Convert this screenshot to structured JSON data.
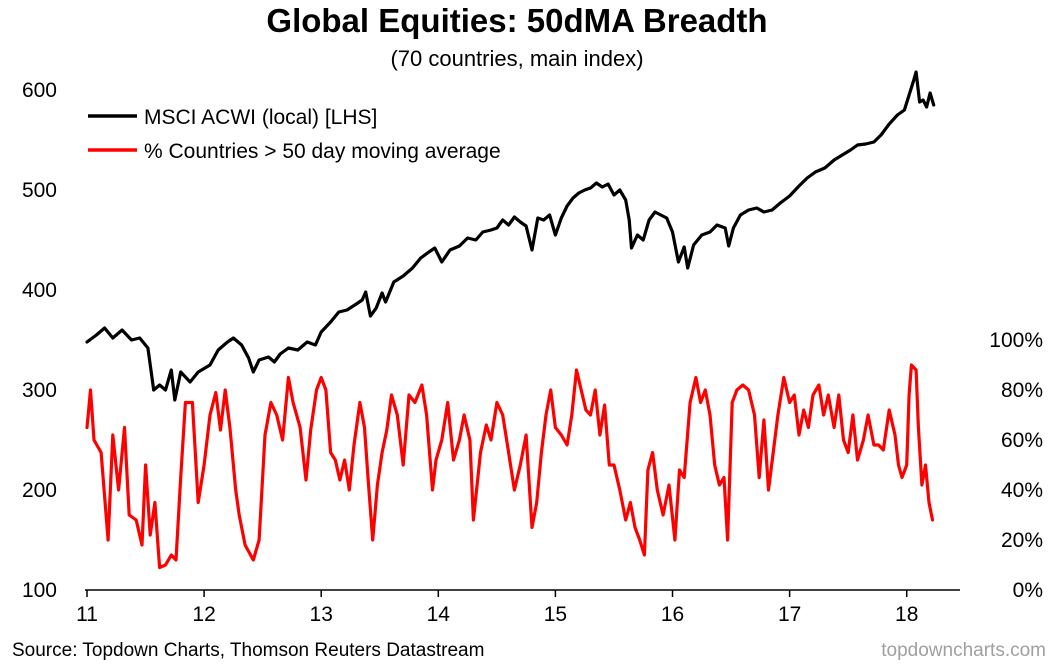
{
  "chart_data": {
    "type": "line",
    "title": "Global Equities: 50dMA Breadth",
    "subtitle": "(70 countries, main index)",
    "x_ticks": [
      "11",
      "12",
      "13",
      "14",
      "15",
      "16",
      "17",
      "18"
    ],
    "x_range": [
      2011.0,
      2018.25
    ],
    "left_axis": {
      "ticks": [
        "100",
        "200",
        "300",
        "400",
        "500",
        "600"
      ],
      "range": [
        100,
        600
      ]
    },
    "right_axis": {
      "ticks": [
        "0%",
        "20%",
        "40%",
        "60%",
        "80%",
        "100%"
      ],
      "range": [
        0,
        100
      ]
    },
    "grid": false,
    "legend_position": "top-left",
    "series": [
      {
        "name": "MSCI ACWI (local) [LHS]",
        "axis": "left",
        "color": "#000000",
        "points": [
          [
            2011.0,
            348
          ],
          [
            2011.08,
            355
          ],
          [
            2011.15,
            362
          ],
          [
            2011.22,
            352
          ],
          [
            2011.3,
            360
          ],
          [
            2011.38,
            350
          ],
          [
            2011.45,
            352
          ],
          [
            2011.52,
            342
          ],
          [
            2011.57,
            300
          ],
          [
            2011.62,
            305
          ],
          [
            2011.67,
            300
          ],
          [
            2011.72,
            320
          ],
          [
            2011.75,
            290
          ],
          [
            2011.8,
            318
          ],
          [
            2011.88,
            308
          ],
          [
            2011.95,
            318
          ],
          [
            2012.05,
            325
          ],
          [
            2012.12,
            340
          ],
          [
            2012.2,
            348
          ],
          [
            2012.25,
            352
          ],
          [
            2012.32,
            345
          ],
          [
            2012.38,
            332
          ],
          [
            2012.42,
            318
          ],
          [
            2012.47,
            330
          ],
          [
            2012.55,
            333
          ],
          [
            2012.6,
            328
          ],
          [
            2012.65,
            336
          ],
          [
            2012.72,
            342
          ],
          [
            2012.8,
            340
          ],
          [
            2012.88,
            348
          ],
          [
            2012.95,
            345
          ],
          [
            2013.0,
            358
          ],
          [
            2013.08,
            368
          ],
          [
            2013.15,
            378
          ],
          [
            2013.22,
            380
          ],
          [
            2013.3,
            386
          ],
          [
            2013.35,
            390
          ],
          [
            2013.38,
            398
          ],
          [
            2013.42,
            374
          ],
          [
            2013.47,
            382
          ],
          [
            2013.52,
            397
          ],
          [
            2013.55,
            388
          ],
          [
            2013.62,
            408
          ],
          [
            2013.7,
            414
          ],
          [
            2013.78,
            422
          ],
          [
            2013.85,
            432
          ],
          [
            2013.92,
            438
          ],
          [
            2013.97,
            442
          ],
          [
            2014.03,
            428
          ],
          [
            2014.1,
            440
          ],
          [
            2014.18,
            444
          ],
          [
            2014.25,
            452
          ],
          [
            2014.32,
            450
          ],
          [
            2014.38,
            458
          ],
          [
            2014.45,
            460
          ],
          [
            2014.5,
            462
          ],
          [
            2014.55,
            470
          ],
          [
            2014.6,
            465
          ],
          [
            2014.65,
            473
          ],
          [
            2014.7,
            468
          ],
          [
            2014.75,
            464
          ],
          [
            2014.8,
            440
          ],
          [
            2014.85,
            472
          ],
          [
            2014.9,
            470
          ],
          [
            2014.95,
            475
          ],
          [
            2015.0,
            455
          ],
          [
            2015.05,
            472
          ],
          [
            2015.1,
            484
          ],
          [
            2015.15,
            492
          ],
          [
            2015.2,
            497
          ],
          [
            2015.25,
            500
          ],
          [
            2015.3,
            502
          ],
          [
            2015.35,
            507
          ],
          [
            2015.4,
            503
          ],
          [
            2015.45,
            506
          ],
          [
            2015.5,
            495
          ],
          [
            2015.55,
            500
          ],
          [
            2015.6,
            490
          ],
          [
            2015.63,
            470
          ],
          [
            2015.65,
            442
          ],
          [
            2015.7,
            455
          ],
          [
            2015.75,
            450
          ],
          [
            2015.8,
            470
          ],
          [
            2015.85,
            478
          ],
          [
            2015.9,
            475
          ],
          [
            2015.95,
            472
          ],
          [
            2016.0,
            458
          ],
          [
            2016.05,
            428
          ],
          [
            2016.1,
            443
          ],
          [
            2016.13,
            422
          ],
          [
            2016.18,
            445
          ],
          [
            2016.25,
            455
          ],
          [
            2016.32,
            458
          ],
          [
            2016.38,
            465
          ],
          [
            2016.45,
            462
          ],
          [
            2016.48,
            444
          ],
          [
            2016.52,
            462
          ],
          [
            2016.58,
            475
          ],
          [
            2016.65,
            480
          ],
          [
            2016.72,
            482
          ],
          [
            2016.78,
            478
          ],
          [
            2016.85,
            480
          ],
          [
            2016.92,
            487
          ],
          [
            2017.0,
            494
          ],
          [
            2017.08,
            504
          ],
          [
            2017.15,
            512
          ],
          [
            2017.22,
            518
          ],
          [
            2017.3,
            522
          ],
          [
            2017.38,
            530
          ],
          [
            2017.45,
            535
          ],
          [
            2017.52,
            540
          ],
          [
            2017.58,
            545
          ],
          [
            2017.65,
            546
          ],
          [
            2017.72,
            548
          ],
          [
            2017.78,
            555
          ],
          [
            2017.85,
            566
          ],
          [
            2017.92,
            575
          ],
          [
            2017.98,
            580
          ],
          [
            2018.02,
            595
          ],
          [
            2018.06,
            610
          ],
          [
            2018.08,
            618
          ],
          [
            2018.11,
            588
          ],
          [
            2018.14,
            590
          ],
          [
            2018.17,
            583
          ],
          [
            2018.2,
            597
          ],
          [
            2018.23,
            585
          ]
        ]
      },
      {
        "name": "% Countries > 50 day moving average",
        "axis": "right",
        "color": "#ff0000",
        "points": [
          [
            2011.0,
            65
          ],
          [
            2011.03,
            80
          ],
          [
            2011.06,
            60
          ],
          [
            2011.12,
            55
          ],
          [
            2011.18,
            20
          ],
          [
            2011.22,
            62
          ],
          [
            2011.27,
            40
          ],
          [
            2011.32,
            65
          ],
          [
            2011.36,
            30
          ],
          [
            2011.42,
            28
          ],
          [
            2011.47,
            18
          ],
          [
            2011.5,
            50
          ],
          [
            2011.54,
            22
          ],
          [
            2011.58,
            35
          ],
          [
            2011.62,
            9
          ],
          [
            2011.67,
            10
          ],
          [
            2011.72,
            14
          ],
          [
            2011.76,
            12
          ],
          [
            2011.8,
            45
          ],
          [
            2011.84,
            75
          ],
          [
            2011.9,
            75
          ],
          [
            2011.95,
            35
          ],
          [
            2012.0,
            50
          ],
          [
            2012.05,
            70
          ],
          [
            2012.1,
            79
          ],
          [
            2012.14,
            64
          ],
          [
            2012.18,
            80
          ],
          [
            2012.22,
            65
          ],
          [
            2012.27,
            40
          ],
          [
            2012.3,
            30
          ],
          [
            2012.35,
            18
          ],
          [
            2012.42,
            12
          ],
          [
            2012.47,
            20
          ],
          [
            2012.52,
            62
          ],
          [
            2012.57,
            75
          ],
          [
            2012.62,
            70
          ],
          [
            2012.67,
            60
          ],
          [
            2012.72,
            85
          ],
          [
            2012.76,
            75
          ],
          [
            2012.82,
            65
          ],
          [
            2012.87,
            44
          ],
          [
            2012.91,
            64
          ],
          [
            2012.96,
            80
          ],
          [
            2013.0,
            85
          ],
          [
            2013.04,
            80
          ],
          [
            2013.08,
            55
          ],
          [
            2013.12,
            52
          ],
          [
            2013.16,
            44
          ],
          [
            2013.2,
            52
          ],
          [
            2013.24,
            40
          ],
          [
            2013.28,
            58
          ],
          [
            2013.33,
            75
          ],
          [
            2013.37,
            65
          ],
          [
            2013.4,
            45
          ],
          [
            2013.44,
            20
          ],
          [
            2013.48,
            42
          ],
          [
            2013.52,
            55
          ],
          [
            2013.56,
            64
          ],
          [
            2013.6,
            78
          ],
          [
            2013.65,
            70
          ],
          [
            2013.7,
            50
          ],
          [
            2013.75,
            78
          ],
          [
            2013.8,
            75
          ],
          [
            2013.86,
            82
          ],
          [
            2013.9,
            70
          ],
          [
            2013.95,
            40
          ],
          [
            2013.98,
            52
          ],
          [
            2014.03,
            60
          ],
          [
            2014.08,
            75
          ],
          [
            2014.13,
            52
          ],
          [
            2014.18,
            60
          ],
          [
            2014.22,
            70
          ],
          [
            2014.27,
            60
          ],
          [
            2014.3,
            28
          ],
          [
            2014.36,
            55
          ],
          [
            2014.41,
            66
          ],
          [
            2014.45,
            60
          ],
          [
            2014.5,
            75
          ],
          [
            2014.55,
            70
          ],
          [
            2014.6,
            55
          ],
          [
            2014.65,
            40
          ],
          [
            2014.7,
            50
          ],
          [
            2014.75,
            62
          ],
          [
            2014.8,
            25
          ],
          [
            2014.84,
            35
          ],
          [
            2014.88,
            55
          ],
          [
            2014.92,
            70
          ],
          [
            2014.96,
            80
          ],
          [
            2015.0,
            65
          ],
          [
            2015.05,
            62
          ],
          [
            2015.1,
            58
          ],
          [
            2015.14,
            70
          ],
          [
            2015.18,
            88
          ],
          [
            2015.22,
            80
          ],
          [
            2015.26,
            72
          ],
          [
            2015.3,
            70
          ],
          [
            2015.34,
            80
          ],
          [
            2015.38,
            62
          ],
          [
            2015.42,
            74
          ],
          [
            2015.46,
            50
          ],
          [
            2015.5,
            50
          ],
          [
            2015.55,
            40
          ],
          [
            2015.6,
            28
          ],
          [
            2015.64,
            35
          ],
          [
            2015.68,
            25
          ],
          [
            2015.72,
            20
          ],
          [
            2015.76,
            14
          ],
          [
            2015.79,
            48
          ],
          [
            2015.83,
            55
          ],
          [
            2015.87,
            40
          ],
          [
            2015.92,
            30
          ],
          [
            2015.97,
            42
          ],
          [
            2016.02,
            20
          ],
          [
            2016.06,
            48
          ],
          [
            2016.1,
            45
          ],
          [
            2016.15,
            75
          ],
          [
            2016.2,
            85
          ],
          [
            2016.24,
            75
          ],
          [
            2016.28,
            80
          ],
          [
            2016.32,
            70
          ],
          [
            2016.36,
            50
          ],
          [
            2016.4,
            42
          ],
          [
            2016.44,
            45
          ],
          [
            2016.47,
            20
          ],
          [
            2016.51,
            75
          ],
          [
            2016.55,
            80
          ],
          [
            2016.6,
            82
          ],
          [
            2016.65,
            80
          ],
          [
            2016.7,
            70
          ],
          [
            2016.74,
            45
          ],
          [
            2016.78,
            68
          ],
          [
            2016.82,
            40
          ],
          [
            2016.86,
            55
          ],
          [
            2016.9,
            70
          ],
          [
            2016.95,
            85
          ],
          [
            2017.0,
            75
          ],
          [
            2017.04,
            78
          ],
          [
            2017.08,
            62
          ],
          [
            2017.12,
            72
          ],
          [
            2017.16,
            65
          ],
          [
            2017.2,
            78
          ],
          [
            2017.25,
            82
          ],
          [
            2017.29,
            70
          ],
          [
            2017.33,
            78
          ],
          [
            2017.38,
            65
          ],
          [
            2017.42,
            78
          ],
          [
            2017.46,
            60
          ],
          [
            2017.5,
            55
          ],
          [
            2017.54,
            70
          ],
          [
            2017.58,
            52
          ],
          [
            2017.63,
            60
          ],
          [
            2017.67,
            70
          ],
          [
            2017.72,
            58
          ],
          [
            2017.76,
            58
          ],
          [
            2017.8,
            56
          ],
          [
            2017.85,
            72
          ],
          [
            2017.9,
            62
          ],
          [
            2017.93,
            50
          ],
          [
            2017.96,
            45
          ],
          [
            2018.0,
            50
          ],
          [
            2018.02,
            78
          ],
          [
            2018.04,
            90
          ],
          [
            2018.08,
            88
          ],
          [
            2018.1,
            65
          ],
          [
            2018.13,
            42
          ],
          [
            2018.16,
            50
          ],
          [
            2018.19,
            35
          ],
          [
            2018.22,
            28
          ]
        ]
      }
    ]
  },
  "footer": {
    "source": "Source: Topdown Charts, Thomson Reuters Datastream",
    "watermark": "topdowncharts.com"
  }
}
